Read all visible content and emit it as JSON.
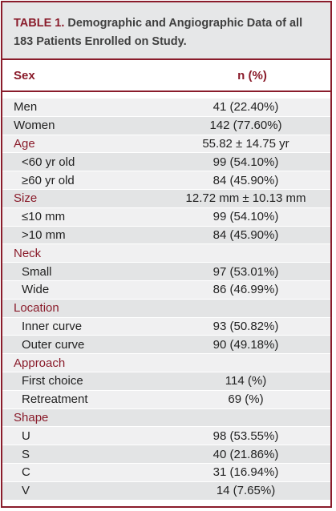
{
  "table": {
    "label": "TABLE 1.",
    "title": "Demographic and Angiographic Data of all 183 Patients Enrolled on Study.",
    "columns": [
      "Sex",
      "n (%)"
    ],
    "rows": [
      {
        "label": "Men",
        "value": "41 (22.40%)",
        "kind": "plain"
      },
      {
        "label": "Women",
        "value": "142 (77.60%)",
        "kind": "plain"
      },
      {
        "label": "Age",
        "value": "55.82 ± 14.75 yr",
        "kind": "section"
      },
      {
        "label": "<60 yr old",
        "value": "99 (54.10%)",
        "kind": "indent"
      },
      {
        "label": "≥60 yr old",
        "value": "84 (45.90%)",
        "kind": "indent"
      },
      {
        "label": "Size",
        "value": "12.72 mm ± 10.13 mm",
        "kind": "section"
      },
      {
        "label": "≤10 mm",
        "value": "99 (54.10%)",
        "kind": "indent"
      },
      {
        "label": ">10 mm",
        "value": "84 (45.90%)",
        "kind": "indent"
      },
      {
        "label": "Neck",
        "value": "",
        "kind": "section"
      },
      {
        "label": "Small",
        "value": "97 (53.01%)",
        "kind": "indent"
      },
      {
        "label": "Wide",
        "value": "86 (46.99%)",
        "kind": "indent"
      },
      {
        "label": "Location",
        "value": "",
        "kind": "section"
      },
      {
        "label": "Inner curve",
        "value": "93 (50.82%)",
        "kind": "indent"
      },
      {
        "label": "Outer curve",
        "value": "90 (49.18%)",
        "kind": "indent"
      },
      {
        "label": "Approach",
        "value": "",
        "kind": "section"
      },
      {
        "label": "First choice",
        "value": "114 (%)",
        "kind": "indent"
      },
      {
        "label": "Retreatment",
        "value": "69 (%)",
        "kind": "indent"
      },
      {
        "label": "Shape",
        "value": "",
        "kind": "section"
      },
      {
        "label": "U",
        "value": "98 (53.55%)",
        "kind": "indent"
      },
      {
        "label": "S",
        "value": "40 (21.86%)",
        "kind": "indent"
      },
      {
        "label": "C",
        "value": "31 (16.94%)",
        "kind": "indent"
      },
      {
        "label": "V",
        "value": "14 (7.65%)",
        "kind": "indent"
      }
    ]
  },
  "colors": {
    "accent": "#8a1c2b",
    "title_bg": "#e6e7e8",
    "row_light": "#f0f0f1",
    "row_dark": "#e3e4e5"
  }
}
